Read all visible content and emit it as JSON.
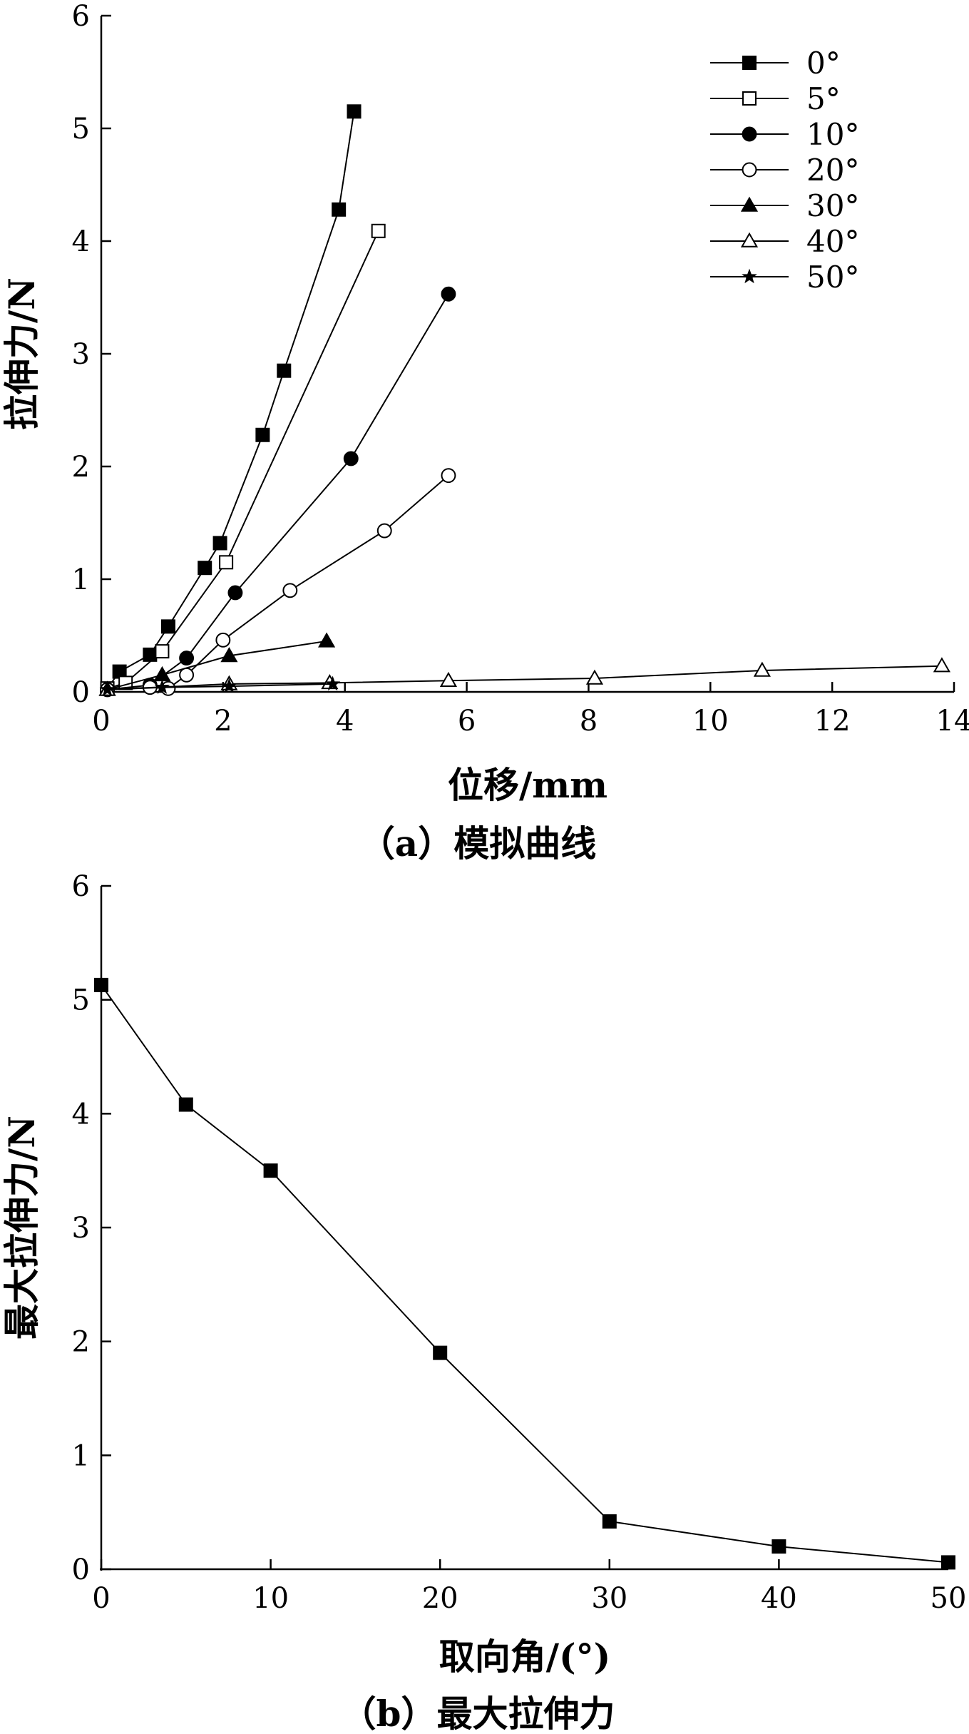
{
  "chart_data": [
    {
      "type": "line",
      "xlabel": "位移/mm",
      "ylabel": "拉伸力/N",
      "caption": "（a）模拟曲线",
      "xlim": [
        0,
        14
      ],
      "ylim": [
        0,
        6
      ],
      "xticks": [
        0,
        2,
        4,
        6,
        8,
        10,
        12,
        14
      ],
      "yticks": [
        0,
        1,
        2,
        3,
        4,
        5,
        6
      ],
      "legend_position": "top-right",
      "series": [
        {
          "name": "0°",
          "marker": "square-filled",
          "x": [
            0.1,
            0.3,
            0.8,
            1.1,
            1.7,
            1.95,
            2.65,
            3.0,
            3.9,
            4.15
          ],
          "y": [
            0.03,
            0.18,
            0.33,
            0.58,
            1.1,
            1.32,
            2.28,
            2.85,
            4.28,
            5.15
          ]
        },
        {
          "name": "5°",
          "marker": "square-open",
          "x": [
            0.1,
            0.4,
            1.0,
            2.05,
            4.55
          ],
          "y": [
            0.03,
            0.08,
            0.36,
            1.15,
            4.09
          ]
        },
        {
          "name": "10°",
          "marker": "circle-filled",
          "x": [
            0.1,
            0.8,
            1.4,
            2.2,
            4.1,
            5.7
          ],
          "y": [
            0.02,
            0.06,
            0.3,
            0.88,
            2.07,
            3.53
          ]
        },
        {
          "name": "20°",
          "marker": "circle-open",
          "x": [
            0.1,
            0.8,
            1.1,
            1.4,
            2.0,
            3.1,
            4.65,
            5.7
          ],
          "y": [
            0.02,
            0.04,
            0.03,
            0.15,
            0.46,
            0.9,
            1.43,
            1.92
          ]
        },
        {
          "name": "30°",
          "marker": "triangle-filled",
          "x": [
            0.1,
            1.0,
            2.1,
            3.7
          ],
          "y": [
            0.02,
            0.15,
            0.32,
            0.45
          ]
        },
        {
          "name": "40°",
          "marker": "triangle-open",
          "x": [
            0.1,
            2.1,
            3.75,
            5.7,
            8.1,
            10.85,
            13.8
          ],
          "y": [
            0.02,
            0.07,
            0.08,
            0.1,
            0.12,
            0.19,
            0.23
          ]
        },
        {
          "name": "50°",
          "marker": "star",
          "x": [
            0.1,
            1.0,
            2.1,
            3.8
          ],
          "y": [
            0.02,
            0.04,
            0.05,
            0.07
          ]
        }
      ]
    },
    {
      "type": "line",
      "xlabel": "取向角/(°)",
      "ylabel": "最大拉伸力/N",
      "caption": "（b）最大拉伸力",
      "xlim": [
        0,
        50
      ],
      "ylim": [
        0,
        6
      ],
      "xticks": [
        0,
        10,
        20,
        30,
        40,
        50
      ],
      "yticks": [
        0,
        1,
        2,
        3,
        4,
        5,
        6
      ],
      "series": [
        {
          "marker": "square-filled",
          "x": [
            0,
            5,
            10,
            20,
            30,
            40,
            50
          ],
          "y": [
            5.13,
            4.08,
            3.5,
            1.9,
            0.42,
            0.2,
            0.06
          ]
        }
      ]
    }
  ]
}
